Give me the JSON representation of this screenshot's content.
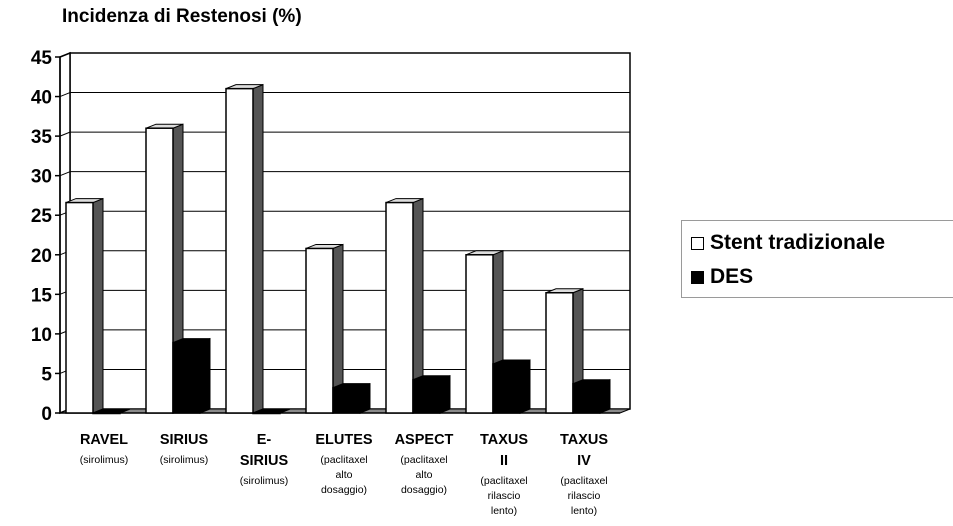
{
  "chart_data": {
    "type": "bar",
    "title": "Incidenza di Restenosi (%)",
    "categories": [
      {
        "lines": [
          "RAVEL"
        ],
        "sublines": [
          "(sirolimus)"
        ]
      },
      {
        "lines": [
          "SIRIUS"
        ],
        "sublines": [
          "(sirolimus)"
        ]
      },
      {
        "lines": [
          "E-",
          "SIRIUS"
        ],
        "sublines": [
          "(sirolimus)"
        ]
      },
      {
        "lines": [
          "ELUTES"
        ],
        "sublines": [
          "(paclitaxel",
          "alto",
          "dosaggio)"
        ]
      },
      {
        "lines": [
          "ASPECT"
        ],
        "sublines": [
          "(paclitaxel",
          "alto",
          "dosaggio)"
        ]
      },
      {
        "lines": [
          "TAXUS",
          "II"
        ],
        "sublines": [
          "(paclitaxel",
          "rilascio",
          "lento)"
        ]
      },
      {
        "lines": [
          "TAXUS",
          "IV"
        ],
        "sublines": [
          "(paclitaxel",
          "rilascio",
          "lento)"
        ]
      }
    ],
    "series": [
      {
        "name": "Stent tradizionale",
        "color": "#ffffff",
        "values": [
          26.6,
          36,
          41,
          20.8,
          26.6,
          20,
          15.2
        ]
      },
      {
        "name": "DES",
        "color": "#000000",
        "values": [
          0,
          8.9,
          0,
          3.2,
          4.2,
          6.2,
          3.7
        ]
      }
    ],
    "y_ticks": [
      "0",
      "5",
      "10",
      "15",
      "20",
      "25",
      "30",
      "35",
      "40",
      "45"
    ],
    "ylim": [
      0,
      45
    ],
    "grid": true,
    "legend_position": "right"
  }
}
